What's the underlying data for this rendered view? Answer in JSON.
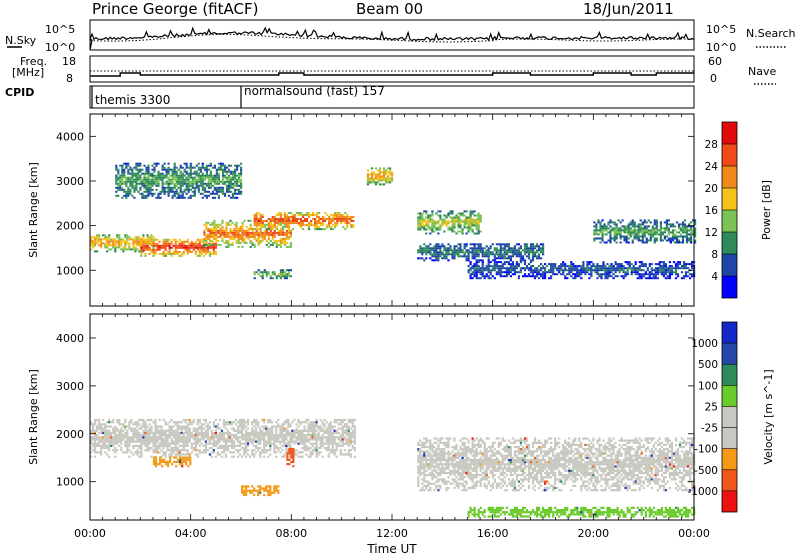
{
  "header": {
    "station": "Prince George (fitACF)",
    "beam": "Beam 00",
    "date": "18/Jun/2011"
  },
  "noise_panel": {
    "left_label": "N.Sky",
    "right_label": "N.Search",
    "left_ticks": [
      "10^5",
      "10^0"
    ],
    "right_ticks": [
      "10^5",
      "10^0"
    ]
  },
  "freq_panel": {
    "left_label_1": "Freq.",
    "left_label_2": "[MHz]",
    "right_label": "Nave",
    "left_ticks": [
      "18",
      "8"
    ],
    "right_ticks": [
      "60",
      "0"
    ]
  },
  "cpid_panel": {
    "label": "CPID",
    "modes": [
      {
        "name": "themis 3300",
        "start_hour": 0
      },
      {
        "name": "normalsound (fast) 157",
        "start_hour": 6
      }
    ]
  },
  "time_axis": {
    "label": "Time UT",
    "ticks": [
      "00:00",
      "04:00",
      "08:00",
      "12:00",
      "16:00",
      "20:00",
      "00:00"
    ]
  },
  "colors": {
    "power": [
      "#0000ff",
      "#1e46a8",
      "#2f8a5a",
      "#7ac254",
      "#f5c21b",
      "#f08a1c",
      "#ee4a1a",
      "#e10a0a"
    ],
    "velocity": [
      "#ee1111",
      "#f0561a",
      "#f59a18",
      "#c8c8c0",
      "#c8c8c0",
      "#6bcb2d",
      "#2d8a5c",
      "#2545a8",
      "#1428c8"
    ]
  },
  "chart_data": [
    {
      "type": "heatmap",
      "name": "power",
      "ylabel": "Slant Range [km]",
      "yticks": [
        "4000",
        "3000",
        "2000",
        "1000"
      ],
      "ylim": [
        200,
        4500
      ],
      "xlim_hours": [
        0,
        24
      ],
      "colorbar_label": "Power [dB]",
      "colorbar_ticks": [
        "28",
        "24",
        "20",
        "16",
        "12",
        "8",
        "4"
      ],
      "value_range": [
        0,
        32
      ],
      "echo_bands": [
        {
          "t0": 0.0,
          "t1": 2.5,
          "r0": 1400,
          "r1": 1800,
          "level": 18
        },
        {
          "t0": 2.0,
          "t1": 5.0,
          "r0": 1300,
          "r1": 1700,
          "level": 24
        },
        {
          "t0": 4.5,
          "t1": 8.0,
          "r0": 1500,
          "r1": 2100,
          "level": 20
        },
        {
          "t0": 6.5,
          "t1": 10.5,
          "r0": 1900,
          "r1": 2300,
          "level": 22
        },
        {
          "t0": 1.0,
          "t1": 6.0,
          "r0": 2600,
          "r1": 3400,
          "level": 10
        },
        {
          "t0": 6.5,
          "t1": 8.0,
          "r0": 800,
          "r1": 1000,
          "level": 12
        },
        {
          "t0": 11.0,
          "t1": 12.0,
          "r0": 2900,
          "r1": 3300,
          "level": 18
        },
        {
          "t0": 13.0,
          "t1": 15.5,
          "r0": 1800,
          "r1": 2300,
          "level": 14
        },
        {
          "t0": 13.0,
          "t1": 18.0,
          "r0": 1200,
          "r1": 1600,
          "level": 8
        },
        {
          "t0": 15.0,
          "t1": 24.0,
          "r0": 800,
          "r1": 1200,
          "level": 6
        },
        {
          "t0": 20.0,
          "t1": 24.0,
          "r0": 1600,
          "r1": 2100,
          "level": 10
        }
      ]
    },
    {
      "type": "heatmap",
      "name": "velocity",
      "ylabel": "Slant Range [km]",
      "yticks": [
        "4000",
        "3000",
        "2000",
        "1000"
      ],
      "ylim": [
        200,
        4500
      ],
      "xlim_hours": [
        0,
        24
      ],
      "colorbar_label": "Velocity [m s^-1]",
      "colorbar_ticks": [
        "1000",
        "500",
        "100",
        "25",
        "-25",
        "-100",
        "-500",
        "-1000"
      ],
      "echo_bands": [
        {
          "t0": 0.0,
          "t1": 10.5,
          "r0": 1500,
          "r1": 2300,
          "v": 0
        },
        {
          "t0": 2.5,
          "t1": 4.0,
          "r0": 1300,
          "r1": 1500,
          "v": -250
        },
        {
          "t0": 6.0,
          "t1": 7.5,
          "r0": 700,
          "r1": 900,
          "v": -400
        },
        {
          "t0": 7.8,
          "t1": 8.1,
          "r0": 1300,
          "r1": 1700,
          "v": -600
        },
        {
          "t0": 13.0,
          "t1": 24.0,
          "r0": 800,
          "r1": 1900,
          "v": 0
        },
        {
          "t0": 15.0,
          "t1": 24.0,
          "r0": 250,
          "r1": 450,
          "v": 60
        }
      ]
    }
  ]
}
